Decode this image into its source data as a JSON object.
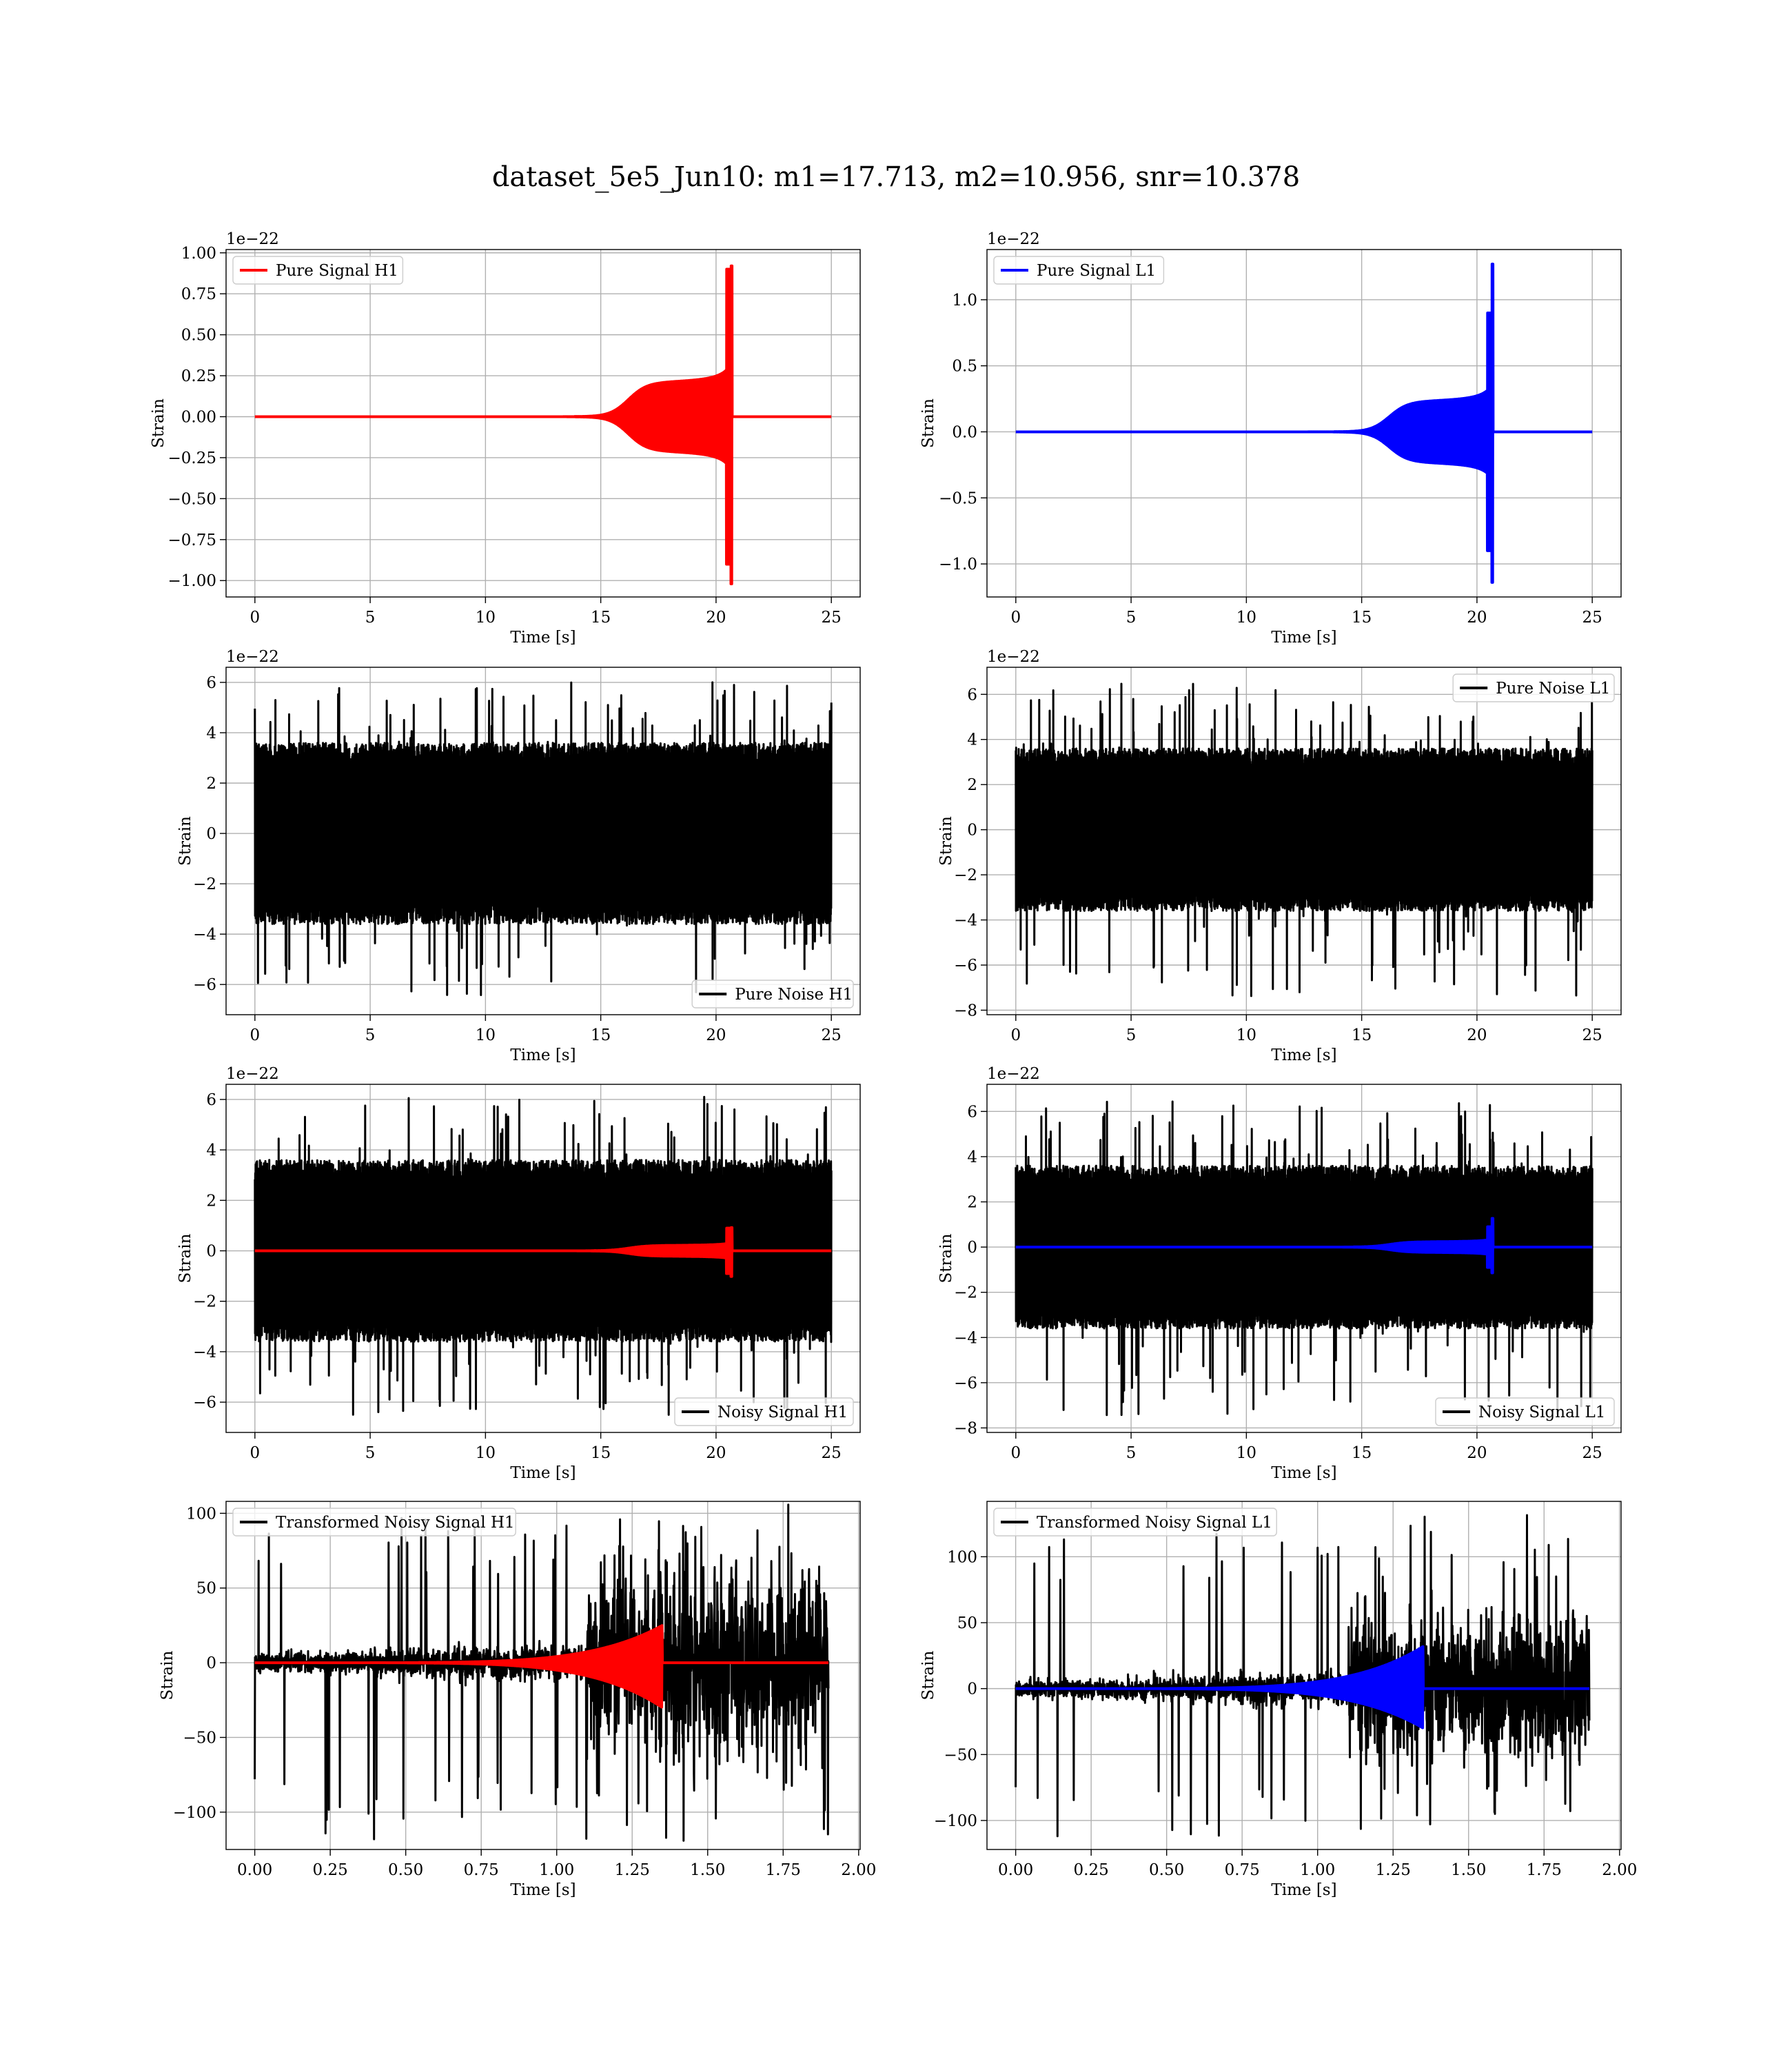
{
  "figure": {
    "title": "dataset_5e5_Jun10: m1=17.713, m2=10.956, snr=10.378"
  },
  "colors": {
    "signal_h1": "#ff0000",
    "signal_l1": "#0000ff",
    "noise": "#000000"
  },
  "chart_data": [
    {
      "id": "pure_h1",
      "type": "line",
      "xlabel": "Time [s]",
      "ylabel": "Strain",
      "offset_text": "1e−22",
      "xlim": [
        -1.25,
        26.25
      ],
      "ylim": [
        -1.1,
        1.02
      ],
      "xticks": [
        0,
        5,
        10,
        15,
        20,
        25
      ],
      "xtick_labels": [
        "0",
        "5",
        "10",
        "15",
        "20",
        "25"
      ],
      "yticks": [
        -1.0,
        -0.75,
        -0.5,
        -0.25,
        0.0,
        0.25,
        0.5,
        0.75,
        1.0
      ],
      "ytick_labels": [
        "−1.00",
        "−0.75",
        "−0.50",
        "−0.25",
        "0.00",
        "0.25",
        "0.50",
        "0.75",
        "1.00"
      ],
      "grid": true,
      "legend_loc": "top-left",
      "series": [
        {
          "name": "Pure Signal H1",
          "color": "#ff0000",
          "kind": "chirp",
          "t_start": 0,
          "t_end": 25,
          "t_merge": 20.7,
          "amp_plateau": 0.2,
          "peak_pos": 0.92,
          "peak_neg": -1.02
        }
      ]
    },
    {
      "id": "pure_l1",
      "type": "line",
      "xlabel": "Time [s]",
      "ylabel": "Strain",
      "offset_text": "1e−22",
      "xlim": [
        -1.25,
        26.25
      ],
      "ylim": [
        -1.25,
        1.38
      ],
      "xticks": [
        0,
        5,
        10,
        15,
        20,
        25
      ],
      "xtick_labels": [
        "0",
        "5",
        "10",
        "15",
        "20",
        "25"
      ],
      "yticks": [
        -1.0,
        -0.5,
        0.0,
        0.5,
        1.0
      ],
      "ytick_labels": [
        "−1.0",
        "−0.5",
        "0.0",
        "0.5",
        "1.0"
      ],
      "grid": true,
      "legend_loc": "top-left",
      "series": [
        {
          "name": "Pure Signal L1",
          "color": "#0000ff",
          "kind": "chirp",
          "t_start": 0,
          "t_end": 25,
          "t_merge": 20.7,
          "amp_plateau": 0.22,
          "peak_pos": 1.27,
          "peak_neg": -1.14
        }
      ]
    },
    {
      "id": "noise_h1",
      "type": "line",
      "xlabel": "Time [s]",
      "ylabel": "Strain",
      "offset_text": "1e−22",
      "xlim": [
        -1.25,
        26.25
      ],
      "ylim": [
        -7.2,
        6.6
      ],
      "xticks": [
        0,
        5,
        10,
        15,
        20,
        25
      ],
      "xtick_labels": [
        "0",
        "5",
        "10",
        "15",
        "20",
        "25"
      ],
      "yticks": [
        -6,
        -4,
        -2,
        0,
        2,
        4,
        6
      ],
      "ytick_labels": [
        "−6",
        "−4",
        "−2",
        "0",
        "2",
        "4",
        "6"
      ],
      "grid": true,
      "legend_loc": "bottom-right",
      "series": [
        {
          "name": "Pure Noise H1",
          "color": "#000000",
          "kind": "noise",
          "t_start": 0,
          "t_end": 25,
          "band": 3.6,
          "max": 6.1,
          "min": -6.6
        }
      ]
    },
    {
      "id": "noise_l1",
      "type": "line",
      "xlabel": "Time [s]",
      "ylabel": "Strain",
      "offset_text": "1e−22",
      "xlim": [
        -1.25,
        26.25
      ],
      "ylim": [
        -8.2,
        7.2
      ],
      "xticks": [
        0,
        5,
        10,
        15,
        20,
        25
      ],
      "xtick_labels": [
        "0",
        "5",
        "10",
        "15",
        "20",
        "25"
      ],
      "yticks": [
        -8,
        -6,
        -4,
        -2,
        0,
        2,
        4,
        6
      ],
      "ytick_labels": [
        "−8",
        "−6",
        "−4",
        "−2",
        "0",
        "2",
        "4",
        "6"
      ],
      "grid": true,
      "legend_loc": "top-right",
      "series": [
        {
          "name": "Pure Noise L1",
          "color": "#000000",
          "kind": "noise",
          "t_start": 0,
          "t_end": 25,
          "band": 3.6,
          "max": 6.5,
          "min": -7.5
        }
      ]
    },
    {
      "id": "noisy_h1",
      "type": "line",
      "xlabel": "Time [s]",
      "ylabel": "Strain",
      "offset_text": "1e−22",
      "xlim": [
        -1.25,
        26.25
      ],
      "ylim": [
        -7.2,
        6.6
      ],
      "xticks": [
        0,
        5,
        10,
        15,
        20,
        25
      ],
      "xtick_labels": [
        "0",
        "5",
        "10",
        "15",
        "20",
        "25"
      ],
      "yticks": [
        -6,
        -4,
        -2,
        0,
        2,
        4,
        6
      ],
      "ytick_labels": [
        "−6",
        "−4",
        "−2",
        "0",
        "2",
        "4",
        "6"
      ],
      "grid": true,
      "legend_loc": "bottom-right",
      "series": [
        {
          "name": "Noisy Signal H1",
          "color": "#000000",
          "kind": "noise",
          "t_start": 0,
          "t_end": 25,
          "band": 3.6,
          "max": 6.1,
          "min": -6.6
        },
        {
          "name": "",
          "color": "#ff0000",
          "kind": "chirp",
          "t_start": 0,
          "t_end": 25,
          "t_merge": 20.7,
          "amp_plateau": 0.2,
          "peak_pos": 0.92,
          "peak_neg": -1.02
        }
      ]
    },
    {
      "id": "noisy_l1",
      "type": "line",
      "xlabel": "Time [s]",
      "ylabel": "Strain",
      "offset_text": "1e−22",
      "xlim": [
        -1.25,
        26.25
      ],
      "ylim": [
        -8.2,
        7.2
      ],
      "xticks": [
        0,
        5,
        10,
        15,
        20,
        25
      ],
      "xtick_labels": [
        "0",
        "5",
        "10",
        "15",
        "20",
        "25"
      ],
      "yticks": [
        -8,
        -6,
        -4,
        -2,
        0,
        2,
        4,
        6
      ],
      "ytick_labels": [
        "−8",
        "−6",
        "−4",
        "−2",
        "0",
        "2",
        "4",
        "6"
      ],
      "grid": true,
      "legend_loc": "bottom-right",
      "series": [
        {
          "name": "Noisy Signal L1",
          "color": "#000000",
          "kind": "noise",
          "t_start": 0,
          "t_end": 25,
          "band": 3.6,
          "max": 6.5,
          "min": -7.5
        },
        {
          "name": "",
          "color": "#0000ff",
          "kind": "chirp",
          "t_start": 0,
          "t_end": 25,
          "t_merge": 20.7,
          "amp_plateau": 0.22,
          "peak_pos": 1.27,
          "peak_neg": -1.14
        }
      ]
    },
    {
      "id": "trans_h1",
      "type": "line",
      "xlabel": "Time [s]",
      "ylabel": "Strain",
      "offset_text": "",
      "xlim": [
        -0.095,
        2.005
      ],
      "ylim": [
        -125,
        108
      ],
      "xticks": [
        0.0,
        0.25,
        0.5,
        0.75,
        1.0,
        1.25,
        1.5,
        1.75,
        2.0
      ],
      "xtick_labels": [
        "0.00",
        "0.25",
        "0.50",
        "0.75",
        "1.00",
        "1.25",
        "1.50",
        "1.75",
        "2.00"
      ],
      "yticks": [
        -100,
        -50,
        0,
        50,
        100
      ],
      "ytick_labels": [
        "−100",
        "−50",
        "0",
        "50",
        "100"
      ],
      "grid": true,
      "legend_loc": "top-left",
      "series": [
        {
          "name": "Transformed Noisy Signal H1",
          "color": "#000000",
          "kind": "transformed_noise",
          "t_start": 0,
          "t_end": 1.9,
          "t_jump": 1.1,
          "band_early": 8,
          "band_late": 50,
          "max": 98,
          "min": -120
        },
        {
          "name": "",
          "color": "#ff0000",
          "kind": "transformed_chirp",
          "t_start": 0,
          "t_end": 1.9,
          "t_merge": 1.35,
          "peak_pos": 25,
          "peak_neg": -30
        }
      ]
    },
    {
      "id": "trans_l1",
      "type": "line",
      "xlabel": "Time [s]",
      "ylabel": "Strain",
      "offset_text": "",
      "xlim": [
        -0.095,
        2.005
      ],
      "ylim": [
        -122,
        142
      ],
      "xticks": [
        0.0,
        0.25,
        0.5,
        0.75,
        1.0,
        1.25,
        1.5,
        1.75,
        2.0
      ],
      "xtick_labels": [
        "0.00",
        "0.25",
        "0.50",
        "0.75",
        "1.00",
        "1.25",
        "1.50",
        "1.75",
        "2.00"
      ],
      "yticks": [
        -100,
        -50,
        0,
        50,
        100
      ],
      "ytick_labels": [
        "−100",
        "−50",
        "0",
        "50",
        "100"
      ],
      "grid": true,
      "legend_loc": "top-left",
      "series": [
        {
          "name": "Transformed Noisy Signal L1",
          "color": "#000000",
          "kind": "transformed_noise",
          "t_start": 0,
          "t_end": 1.9,
          "t_jump": 1.1,
          "band_early": 8,
          "band_late": 45,
          "max": 132,
          "min": -115
        },
        {
          "name": "",
          "color": "#0000ff",
          "kind": "transformed_chirp",
          "t_start": 0,
          "t_end": 1.9,
          "t_merge": 1.35,
          "peak_pos": 32,
          "peak_neg": -30
        }
      ]
    }
  ]
}
